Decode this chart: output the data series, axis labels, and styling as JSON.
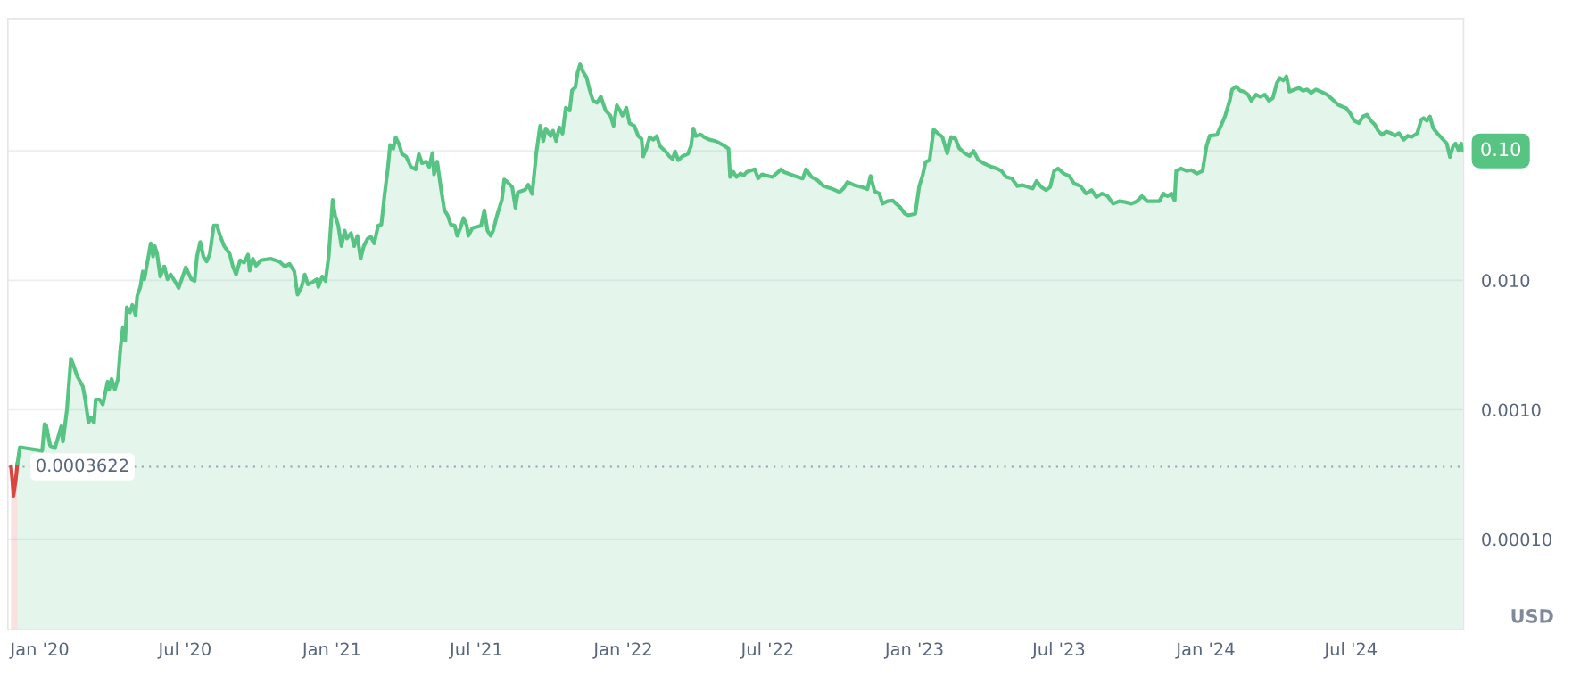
{
  "chart_data": {
    "type": "area",
    "ylabel": "USD",
    "log": "y",
    "grid": "y",
    "xlim": [
      "2019-11-22",
      "2024-11-19"
    ],
    "xticks": [
      {
        "value": "2020-01-01",
        "label": "Jan '20"
      },
      {
        "value": "2020-07-01",
        "label": "Jul '20"
      },
      {
        "value": "2021-01-01",
        "label": "Jan '21"
      },
      {
        "value": "2021-07-01",
        "label": "Jul '21"
      },
      {
        "value": "2022-01-01",
        "label": "Jan '22"
      },
      {
        "value": "2022-07-01",
        "label": "Jul '22"
      },
      {
        "value": "2023-01-01",
        "label": "Jan '23"
      },
      {
        "value": "2023-07-01",
        "label": "Jul '23"
      },
      {
        "value": "2024-01-01",
        "label": "Jan '24"
      },
      {
        "value": "2024-07-01",
        "label": "Jul '24"
      }
    ],
    "ylim": [
      2e-05,
      1.05
    ],
    "yticks": [
      {
        "value": 0.0001,
        "label": "0.00010"
      },
      {
        "value": 0.001,
        "label": "0.0010"
      },
      {
        "value": 0.01,
        "label": "0.010"
      },
      {
        "value": 0.1,
        "label": null
      }
    ],
    "ref_lines": [
      {
        "axis": "y",
        "value": 0.0003622,
        "label": "0.0003622",
        "color": "#9aa1ad",
        "line_style": "dotted"
      }
    ],
    "annotations": [
      {
        "text": "0.10",
        "x": "2024-11-18",
        "y": 0.1
      }
    ],
    "series": [
      {
        "color": "#d9453f",
        "x": [
          "2019-11-26",
          "2019-11-28",
          "2019-11-29",
          "2019-12-02",
          "2019-12-04"
        ],
        "values": [
          0.000367,
          0.000267,
          0.000217,
          0.000292,
          0.000385
        ]
      },
      {
        "color": "#58c484",
        "x": [
          "2019-12-04",
          "2019-12-07",
          "2020-01-04",
          "2020-01-07",
          "2020-01-09",
          "2020-01-14",
          "2020-01-20",
          "2020-01-28",
          "2020-01-30",
          "2020-02-04",
          "2020-02-09",
          "2020-02-12",
          "2020-02-17",
          "2020-02-24",
          "2020-02-27",
          "2020-03-02",
          "2020-03-05",
          "2020-03-09",
          "2020-03-11",
          "2020-03-16",
          "2020-03-20",
          "2020-03-26",
          "2020-03-28",
          "2020-03-31",
          "2020-04-04",
          "2020-04-08",
          "2020-04-11",
          "2020-04-14",
          "2020-04-17",
          "2020-04-19",
          "2020-04-23",
          "2020-04-26",
          "2020-04-30",
          "2020-05-02",
          "2020-05-06",
          "2020-05-09",
          "2020-05-11",
          "2020-05-15",
          "2020-05-19",
          "2020-05-22",
          "2020-05-24",
          "2020-05-27",
          "2020-05-31",
          "2020-06-05",
          "2020-06-09",
          "2020-06-13",
          "2020-06-18",
          "2020-06-23",
          "2020-06-28",
          "2020-07-02",
          "2020-07-09",
          "2020-07-13",
          "2020-07-16",
          "2020-07-20",
          "2020-07-24",
          "2020-07-28",
          "2020-08-01",
          "2020-08-06",
          "2020-08-10",
          "2020-08-14",
          "2020-08-19",
          "2020-08-26",
          "2020-08-30",
          "2020-09-03",
          "2020-09-08",
          "2020-09-13",
          "2020-09-18",
          "2020-09-20",
          "2020-09-24",
          "2020-09-28",
          "2020-10-04",
          "2020-10-16",
          "2020-10-27",
          "2020-11-03",
          "2020-11-09",
          "2020-11-15",
          "2020-11-19",
          "2020-11-24",
          "2020-11-28",
          "2020-12-02",
          "2020-12-08",
          "2020-12-13",
          "2020-12-15",
          "2020-12-20",
          "2020-12-24",
          "2020-12-28",
          "2021-01-02",
          "2021-01-05",
          "2021-01-09",
          "2021-01-13",
          "2021-01-17",
          "2021-01-20",
          "2021-01-25",
          "2021-01-29",
          "2021-02-02",
          "2021-02-06",
          "2021-02-10",
          "2021-02-15",
          "2021-02-19",
          "2021-02-23",
          "2021-02-28",
          "2021-03-04",
          "2021-03-08",
          "2021-03-12",
          "2021-03-15",
          "2021-03-19",
          "2021-03-22",
          "2021-03-26",
          "2021-03-30",
          "2021-04-04",
          "2021-04-10",
          "2021-04-16",
          "2021-04-20",
          "2021-04-24",
          "2021-04-29",
          "2021-05-03",
          "2021-05-07",
          "2021-05-09",
          "2021-05-13",
          "2021-05-17",
          "2021-05-22",
          "2021-05-26",
          "2021-05-30",
          "2021-06-04",
          "2021-06-07",
          "2021-06-11",
          "2021-06-15",
          "2021-06-19",
          "2021-06-21",
          "2021-06-26",
          "2021-07-07",
          "2021-07-11",
          "2021-07-15",
          "2021-07-19",
          "2021-07-22",
          "2021-07-27",
          "2021-08-02",
          "2021-08-05",
          "2021-08-09",
          "2021-08-15",
          "2021-08-19",
          "2021-08-22",
          "2021-08-31",
          "2021-09-04",
          "2021-09-09",
          "2021-09-14",
          "2021-09-19",
          "2021-09-23",
          "2021-09-26",
          "2021-10-02",
          "2021-10-05",
          "2021-10-09",
          "2021-10-13",
          "2021-10-17",
          "2021-10-21",
          "2021-10-26",
          "2021-10-29",
          "2021-11-02",
          "2021-11-05",
          "2021-11-08",
          "2021-11-12",
          "2021-11-16",
          "2021-11-20",
          "2021-11-24",
          "2021-11-29",
          "2021-12-04",
          "2021-12-10",
          "2021-12-16",
          "2021-12-20",
          "2021-12-24",
          "2021-12-28",
          "2021-12-31",
          "2022-01-05",
          "2022-01-09",
          "2022-01-15",
          "2022-01-20",
          "2022-01-24",
          "2022-01-26",
          "2022-01-30",
          "2022-02-03",
          "2022-02-08",
          "2022-02-12",
          "2022-02-16",
          "2022-02-23",
          "2022-02-28",
          "2022-03-04",
          "2022-03-07",
          "2022-03-11",
          "2022-03-16",
          "2022-03-23",
          "2022-03-27",
          "2022-03-30",
          "2022-04-02",
          "2022-04-08",
          "2022-04-13",
          "2022-04-19",
          "2022-04-27",
          "2022-05-06",
          "2022-05-13",
          "2022-05-15",
          "2022-05-19",
          "2022-05-23",
          "2022-05-28",
          "2022-06-01",
          "2022-06-05",
          "2022-06-15",
          "2022-06-19",
          "2022-06-24",
          "2022-07-07",
          "2022-07-18",
          "2022-07-21",
          "2022-08-02",
          "2022-08-14",
          "2022-08-18",
          "2022-08-25",
          "2022-09-01",
          "2022-09-09",
          "2022-09-19",
          "2022-09-29",
          "2022-10-04",
          "2022-10-09",
          "2022-10-17",
          "2022-10-27",
          "2022-11-03",
          "2022-11-07",
          "2022-11-12",
          "2022-11-18",
          "2022-11-22",
          "2022-11-28",
          "2022-12-05",
          "2022-12-09",
          "2022-12-14",
          "2022-12-20",
          "2022-12-24",
          "2023-01-02",
          "2023-01-07",
          "2023-01-11",
          "2023-01-15",
          "2023-01-20",
          "2023-01-25",
          "2023-01-30",
          "2023-02-05",
          "2023-02-11",
          "2023-02-16",
          "2023-02-21",
          "2023-02-26",
          "2023-03-05",
          "2023-03-11",
          "2023-03-16",
          "2023-03-22",
          "2023-03-29",
          "2023-04-05",
          "2023-04-14",
          "2023-04-20",
          "2023-04-26",
          "2023-05-03",
          "2023-05-10",
          "2023-05-16",
          "2023-05-29",
          "2023-06-03",
          "2023-06-09",
          "2023-06-15",
          "2023-06-20",
          "2023-06-25",
          "2023-06-30",
          "2023-07-07",
          "2023-07-14",
          "2023-07-20",
          "2023-07-28",
          "2023-08-04",
          "2023-08-11",
          "2023-08-17",
          "2023-08-24",
          "2023-08-31",
          "2023-09-07",
          "2023-09-15",
          "2023-09-22",
          "2023-09-30",
          "2023-10-07",
          "2023-10-13",
          "2023-10-20",
          "2023-11-04",
          "2023-11-09",
          "2023-11-14",
          "2023-11-19",
          "2023-11-23",
          "2023-11-25",
          "2023-12-01",
          "2023-12-08",
          "2023-12-14",
          "2023-12-21",
          "2023-12-28",
          "2024-01-02",
          "2024-01-06",
          "2024-01-15",
          "2024-01-20",
          "2024-01-25",
          "2024-01-31",
          "2024-02-03",
          "2024-02-08",
          "2024-02-13",
          "2024-02-18",
          "2024-02-23",
          "2024-02-27",
          "2024-03-04",
          "2024-03-09",
          "2024-03-15",
          "2024-03-20",
          "2024-03-25",
          "2024-03-30",
          "2024-04-03",
          "2024-04-07",
          "2024-04-11",
          "2024-04-15",
          "2024-04-21",
          "2024-04-27",
          "2024-05-02",
          "2024-05-07",
          "2024-05-12",
          "2024-05-18",
          "2024-05-24",
          "2024-06-01",
          "2024-06-08",
          "2024-06-15",
          "2024-06-20",
          "2024-06-25",
          "2024-06-30",
          "2024-07-05",
          "2024-07-11",
          "2024-07-16",
          "2024-07-21",
          "2024-07-26",
          "2024-07-31",
          "2024-08-04",
          "2024-08-09",
          "2024-08-14",
          "2024-08-20",
          "2024-08-25",
          "2024-08-30",
          "2024-09-05",
          "2024-09-10",
          "2024-09-15",
          "2024-09-22",
          "2024-09-27",
          "2024-09-30",
          "2024-10-04",
          "2024-10-08",
          "2024-10-12",
          "2024-10-17",
          "2024-10-23",
          "2024-10-29",
          "2024-11-02",
          "2024-11-06",
          "2024-11-09",
          "2024-11-13",
          "2024-11-16",
          "2024-11-18"
        ],
        "values": [
          0.000385,
          0.000514,
          0.000483,
          0.000774,
          0.00076,
          0.000528,
          0.000506,
          0.000748,
          0.000569,
          0.001,
          0.00248,
          0.00223,
          0.00181,
          0.00151,
          0.0012,
          0.000796,
          0.000873,
          0.000796,
          0.0012,
          0.0012,
          0.0011,
          0.00165,
          0.00144,
          0.00173,
          0.00144,
          0.00173,
          0.00298,
          0.00429,
          0.00342,
          0.00618,
          0.00564,
          0.00646,
          0.00538,
          0.00754,
          0.00889,
          0.0117,
          0.0102,
          0.014,
          0.0193,
          0.0153,
          0.0184,
          0.016,
          0.0107,
          0.0128,
          0.0102,
          0.0111,
          0.0099,
          0.00873,
          0.0107,
          0.0126,
          0.0102,
          0.0099,
          0.0153,
          0.0198,
          0.0153,
          0.014,
          0.016,
          0.0265,
          0.0265,
          0.0221,
          0.0184,
          0.016,
          0.0128,
          0.0111,
          0.0143,
          0.0137,
          0.0158,
          0.0119,
          0.0147,
          0.013,
          0.0143,
          0.0147,
          0.014,
          0.0128,
          0.0134,
          0.0117,
          0.00775,
          0.00889,
          0.0111,
          0.0093,
          0.0097,
          0.0102,
          0.00889,
          0.0107,
          0.0099,
          0.0153,
          0.0418,
          0.0318,
          0.0265,
          0.0184,
          0.0242,
          0.0211,
          0.0231,
          0.0184,
          0.0221,
          0.0147,
          0.0184,
          0.0211,
          0.0217,
          0.0193,
          0.0265,
          0.027,
          0.0457,
          0.0721,
          0.111,
          0.104,
          0.127,
          0.113,
          0.0946,
          0.0906,
          0.0753,
          0.0721,
          0.0946,
          0.0804,
          0.0826,
          0.0753,
          0.0964,
          0.0658,
          0.0826,
          0.0548,
          0.0348,
          0.0318,
          0.027,
          0.0265,
          0.0221,
          0.0253,
          0.0303,
          0.0265,
          0.0221,
          0.0253,
          0.0265,
          0.0348,
          0.0242,
          0.0221,
          0.0242,
          0.0318,
          0.0418,
          0.0601,
          0.0574,
          0.0524,
          0.0364,
          0.0479,
          0.0501,
          0.0548,
          0.0466,
          0.0946,
          0.156,
          0.119,
          0.149,
          0.13,
          0.143,
          0.119,
          0.152,
          0.136,
          0.215,
          0.205,
          0.295,
          0.309,
          0.406,
          0.466,
          0.406,
          0.371,
          0.295,
          0.246,
          0.235,
          0.262,
          0.205,
          0.187,
          0.156,
          0.225,
          0.205,
          0.187,
          0.215,
          0.163,
          0.156,
          0.13,
          0.124,
          0.0906,
          0.104,
          0.127,
          0.122,
          0.13,
          0.109,
          0.0991,
          0.0906,
          0.0865,
          0.0991,
          0.0849,
          0.0906,
          0.0946,
          0.109,
          0.149,
          0.13,
          0.134,
          0.127,
          0.122,
          0.119,
          0.111,
          0.104,
          0.0628,
          0.0689,
          0.0628,
          0.067,
          0.0646,
          0.0689,
          0.0721,
          0.0612,
          0.0658,
          0.0628,
          0.0721,
          0.0689,
          0.0646,
          0.0612,
          0.0721,
          0.0628,
          0.0596,
          0.0535,
          0.0512,
          0.0481,
          0.0512,
          0.0574,
          0.0545,
          0.0525,
          0.0507,
          0.064,
          0.0489,
          0.0468,
          0.0391,
          0.0409,
          0.0413,
          0.0391,
          0.0367,
          0.0327,
          0.0318,
          0.0327,
          0.0535,
          0.064,
          0.0822,
          0.0851,
          0.146,
          0.137,
          0.128,
          0.0957,
          0.128,
          0.125,
          0.105,
          0.0957,
          0.0914,
          0.1,
          0.0851,
          0.08,
          0.0764,
          0.0731,
          0.07,
          0.0628,
          0.0611,
          0.0535,
          0.0545,
          0.0512,
          0.0585,
          0.0525,
          0.0498,
          0.0525,
          0.07,
          0.0731,
          0.0668,
          0.064,
          0.056,
          0.0535,
          0.0468,
          0.0498,
          0.044,
          0.0468,
          0.0447,
          0.0391,
          0.0409,
          0.0402,
          0.0391,
          0.0409,
          0.0447,
          0.0409,
          0.0409,
          0.0468,
          0.0447,
          0.0468,
          0.0413,
          0.07,
          0.0731,
          0.07,
          0.0711,
          0.0668,
          0.07,
          0.109,
          0.131,
          0.133,
          0.156,
          0.184,
          0.244,
          0.298,
          0.314,
          0.292,
          0.287,
          0.272,
          0.244,
          0.272,
          0.262,
          0.272,
          0.244,
          0.256,
          0.334,
          0.366,
          0.35,
          0.376,
          0.287,
          0.298,
          0.306,
          0.292,
          0.298,
          0.28,
          0.298,
          0.287,
          0.272,
          0.249,
          0.227,
          0.22,
          0.214,
          0.195,
          0.171,
          0.164,
          0.184,
          0.19,
          0.171,
          0.159,
          0.143,
          0.133,
          0.141,
          0.137,
          0.131,
          0.137,
          0.122,
          0.131,
          0.128,
          0.137,
          0.174,
          0.179,
          0.171,
          0.184,
          0.15,
          0.137,
          0.125,
          0.114,
          0.0898,
          0.109,
          0.114,
          0.1,
          0.114,
          0.1
        ]
      }
    ]
  }
}
